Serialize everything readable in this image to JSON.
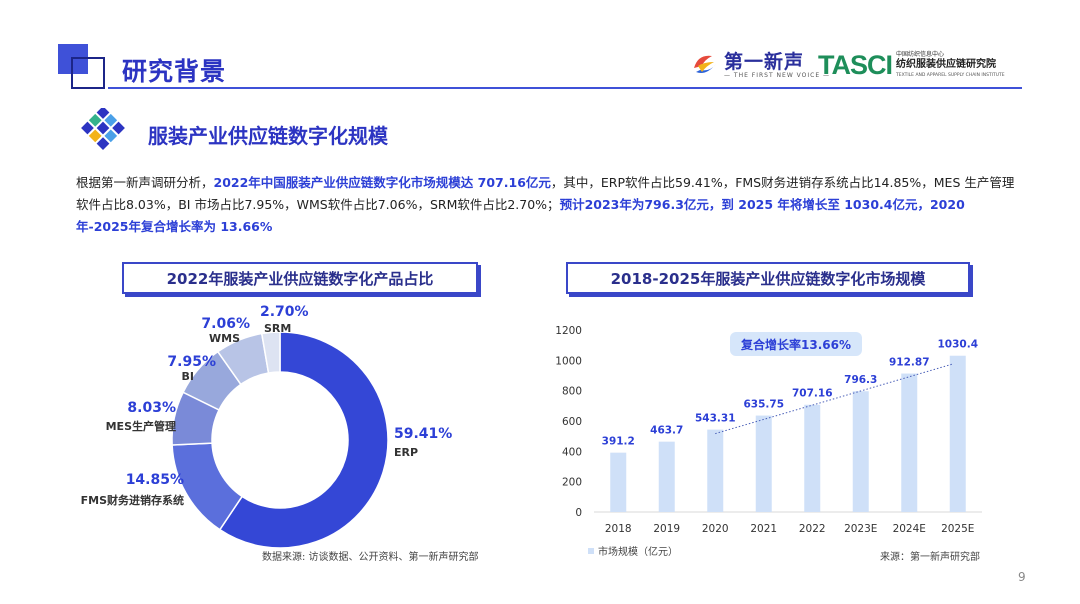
{
  "page": {
    "title": "研究背景",
    "section_title": "服装产业供应链数字化规模",
    "page_number": "9"
  },
  "logos": {
    "brand1_name": "第一新声",
    "brand1_sub": "— THE FIRST NEW VOICE —",
    "brand2_mark": "TASCI",
    "brand2_cn_small": "中国纺织信息中心",
    "brand2_cn": "纺织服装供应链研究院",
    "brand2_en": "TEXTILE AND APPAREL SUPPLY CHAIN INSTITUTE"
  },
  "intro": {
    "p1": "根据第一新声调研分析，",
    "h1": "2022年中国服装产业供应链数字化市场规模达 707.16亿元",
    "p2": "，其中，ERP软件占比59.41%，FMS财务进销存系统占比14.85%，MES 生产管理软件占比8.03%，BI 市场占比7.95%，WMS软件占比7.06%，SRM软件占比2.70%；",
    "h2": "预计2023年为796.3亿元，到 2025 年将增长至 1030.4亿元，2020年-2025年复合增长率为 13.66%"
  },
  "colors": {
    "primary": "#2c34c2",
    "bar": "#cfe0f8",
    "donut": [
      "#3447d6",
      "#5b6fdc",
      "#7a8ad8",
      "#98a8dc",
      "#b8c4e6",
      "#dde3f2"
    ]
  },
  "chart_data": [
    {
      "type": "pie",
      "title": "2022年服装产业供应链数字化产品占比",
      "labels": [
        "ERP",
        "FMS财务进销存系统",
        "MES生产管理",
        "BI",
        "WMS",
        "SRM"
      ],
      "values": [
        59.41,
        14.85,
        8.03,
        7.95,
        7.06,
        2.7
      ],
      "value_labels": [
        "59.41%",
        "14.85%",
        "8.03%",
        "7.95%",
        "7.06%",
        "2.70%"
      ],
      "source": "数据来源: 访谈数据、公开资料、第一新声研究部"
    },
    {
      "type": "bar",
      "title": "2018-2025年服装产业供应链数字化市场规模",
      "categories": [
        "2018",
        "2019",
        "2020",
        "2021",
        "2022",
        "2023E",
        "2024E",
        "2025E"
      ],
      "series": [
        {
          "name": "市场规模（亿元）",
          "values": [
            391.2,
            463.7,
            543.31,
            635.75,
            707.16,
            796.3,
            912.87,
            1030.4
          ]
        }
      ],
      "value_labels": [
        "391.2",
        "463.7",
        "543.31",
        "635.75",
        "707.16",
        "796.3",
        "912.87",
        "1030.4"
      ],
      "ylim": [
        0,
        1200
      ],
      "yticks": [
        "0",
        "200",
        "400",
        "600",
        "800",
        "1000",
        "1200"
      ],
      "annotation": "复合增长率13.66%",
      "legend": "市场规模（亿元）",
      "legend_position": "bottom-left",
      "source": "来源：第一新声研究部"
    }
  ]
}
